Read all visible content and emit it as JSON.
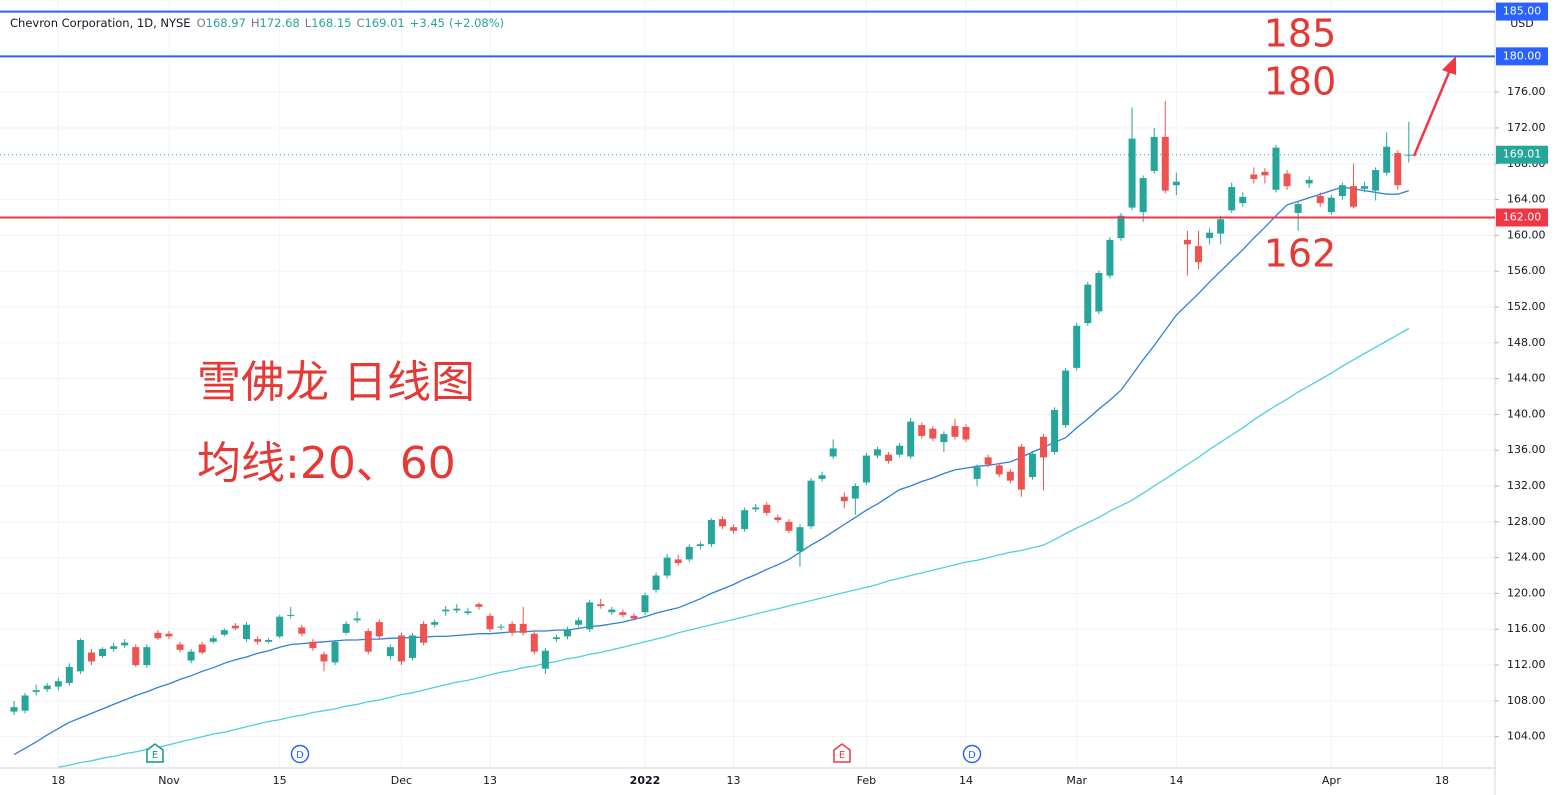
{
  "chart_data": {
    "type": "candlestick",
    "header": {
      "name": "Chevron Corporation, 1D, NYSE",
      "o": "O",
      "h": "H",
      "l": "L",
      "c": "C",
      "change": "+3.45",
      "change_pct": "(+2.08%)"
    },
    "currency": "USD",
    "categories": [
      null,
      null,
      null,
      null,
      "18",
      null,
      null,
      null,
      null,
      null,
      null,
      null,
      null,
      null,
      "Nov",
      null,
      null,
      null,
      null,
      null,
      null,
      null,
      null,
      null,
      "15",
      null,
      null,
      null,
      null,
      null,
      null,
      null,
      null,
      null,
      null,
      "Dec",
      null,
      null,
      null,
      null,
      null,
      null,
      null,
      "13",
      null,
      null,
      null,
      null,
      null,
      null,
      null,
      null,
      null,
      null,
      null,
      null,
      null,
      "2022",
      null,
      null,
      null,
      null,
      null,
      null,
      null,
      "13",
      null,
      null,
      null,
      null,
      null,
      null,
      null,
      null,
      null,
      null,
      null,
      "Feb",
      null,
      null,
      null,
      null,
      null,
      null,
      null,
      null,
      "14",
      null,
      null,
      null,
      null,
      null,
      null,
      null,
      null,
      null,
      "Mar",
      null,
      null,
      null,
      null,
      null,
      null,
      null,
      null,
      "14",
      null,
      null,
      null,
      null,
      null,
      null,
      null,
      null,
      null,
      null,
      null,
      null,
      null,
      "Apr",
      null,
      null,
      null,
      null,
      null,
      null,
      null,
      null,
      null,
      "18"
    ],
    "open": [
      106.8,
      106.9,
      109.0,
      109.3,
      109.6,
      110.0,
      111.3,
      113.4,
      113.0,
      113.8,
      114.2,
      114.0,
      112.0,
      115.6,
      115.5,
      114.3,
      112.5,
      114.3,
      114.6,
      115.4,
      116.4,
      114.9,
      114.9,
      114.6,
      115.2,
      117.5,
      116.2,
      114.6,
      113.2,
      112.3,
      115.6,
      117.0,
      115.8,
      116.8,
      113.0,
      115.3,
      112.8,
      116.6,
      116.5,
      118.0,
      118.1,
      117.8,
      118.8,
      117.5,
      116.2,
      116.6,
      116.6,
      115.5,
      111.6,
      114.9,
      115.2,
      116.5,
      116.0,
      118.8,
      117.9,
      117.9,
      117.5,
      117.9,
      120.4,
      122.0,
      123.8,
      123.8,
      125.3,
      125.5,
      128.3,
      127.4,
      127.2,
      129.4,
      129.9,
      128.5,
      128.0,
      124.7,
      127.5,
      132.8,
      135.3,
      130.8,
      130.6,
      132.4,
      135.4,
      135.5,
      135.5,
      135.3,
      138.8,
      138.4,
      136.9,
      138.7,
      138.6,
      132.8,
      135.2,
      134.3,
      133.6,
      136.4,
      133.0,
      137.5,
      135.8,
      138.8,
      145.2,
      150.2,
      151.5,
      155.5,
      159.7,
      163.1,
      162.6,
      167.2,
      171.0,
      165.6,
      159.5,
      158.8,
      159.7,
      160.2,
      162.8,
      163.6,
      166.8,
      167.1,
      165.1,
      166.9,
      162.5,
      165.8,
      164.4,
      162.6,
      164.4,
      165.5,
      165.2,
      165.0,
      167.0,
      169.2,
      168.97,
      null,
      null,
      null
    ],
    "high": [
      108.0,
      108.9,
      109.8,
      110.0,
      110.6,
      112.2,
      115.0,
      113.8,
      114.0,
      114.5,
      114.9,
      114.3,
      114.3,
      115.9,
      115.8,
      114.6,
      113.8,
      114.6,
      115.3,
      116.1,
      116.7,
      116.8,
      115.2,
      115.0,
      117.6,
      118.5,
      116.5,
      114.9,
      113.5,
      114.8,
      116.9,
      118.0,
      116.1,
      117.1,
      114.3,
      115.6,
      115.6,
      116.9,
      117.1,
      118.6,
      118.8,
      118.4,
      119.0,
      117.8,
      116.6,
      116.9,
      118.5,
      115.8,
      113.9,
      115.4,
      116.3,
      117.3,
      119.3,
      119.4,
      118.5,
      118.2,
      117.8,
      120.1,
      122.3,
      124.4,
      124.3,
      125.5,
      125.8,
      128.4,
      128.6,
      127.7,
      129.6,
      130.0,
      130.2,
      128.8,
      128.3,
      127.7,
      132.9,
      133.6,
      137.2,
      131.3,
      132.3,
      135.7,
      136.4,
      135.8,
      136.8,
      139.6,
      139.1,
      138.7,
      138.1,
      139.5,
      138.9,
      134.4,
      135.5,
      134.6,
      133.9,
      136.7,
      135.9,
      137.8,
      140.8,
      145.2,
      150.2,
      154.8,
      156.1,
      159.8,
      162.5,
      174.3,
      166.7,
      172.0,
      175.0,
      167.0,
      160.5,
      160.5,
      160.8,
      162.2,
      165.9,
      164.8,
      167.6,
      167.5,
      170.1,
      167.3,
      163.8,
      166.6,
      164.8,
      164.5,
      165.9,
      168.0,
      166.0,
      167.6,
      171.5,
      169.5,
      172.68,
      null,
      null,
      null
    ],
    "low": [
      106.4,
      106.6,
      108.6,
      109.0,
      109.2,
      109.7,
      111.0,
      112.0,
      112.8,
      113.5,
      113.9,
      111.8,
      111.7,
      114.8,
      114.9,
      113.4,
      112.2,
      113.2,
      114.4,
      115.2,
      115.9,
      114.6,
      114.3,
      114.4,
      115.0,
      117.2,
      115.2,
      113.6,
      111.3,
      112.0,
      115.4,
      116.7,
      113.2,
      114.9,
      112.6,
      112.0,
      112.5,
      114.2,
      116.2,
      117.5,
      117.8,
      117.6,
      118.2,
      115.7,
      115.9,
      115.3,
      115.3,
      113.2,
      111.0,
      114.6,
      114.9,
      116.2,
      115.7,
      118.3,
      117.6,
      117.3,
      117.0,
      117.6,
      120.1,
      121.7,
      123.1,
      123.5,
      124.9,
      125.2,
      127.2,
      126.7,
      126.9,
      129.1,
      128.7,
      127.9,
      126.7,
      123.0,
      127.2,
      132.5,
      135.0,
      129.5,
      128.8,
      132.1,
      135.1,
      134.5,
      135.2,
      135.0,
      137.3,
      137.0,
      135.8,
      137.2,
      136.9,
      132.0,
      134.1,
      133.0,
      132.3,
      130.8,
      132.7,
      131.5,
      135.5,
      138.5,
      144.9,
      149.9,
      151.2,
      155.2,
      159.4,
      162.8,
      161.5,
      166.9,
      164.7,
      164.5,
      155.5,
      156.2,
      159.0,
      159.0,
      162.5,
      163.2,
      165.8,
      165.8,
      164.8,
      165.1,
      160.5,
      165.3,
      163.2,
      162.3,
      164.0,
      163.0,
      164.8,
      163.9,
      166.7,
      165.1,
      168.15,
      null,
      null,
      null
    ],
    "close": [
      107.3,
      108.6,
      109.2,
      109.7,
      110.2,
      111.8,
      114.8,
      112.4,
      113.8,
      114.1,
      114.5,
      112.0,
      114.0,
      115.0,
      115.2,
      113.7,
      113.5,
      113.4,
      115.0,
      115.9,
      116.1,
      116.5,
      114.6,
      114.8,
      117.4,
      117.6,
      115.5,
      113.9,
      112.4,
      114.6,
      116.6,
      117.2,
      113.5,
      115.2,
      114.0,
      112.4,
      115.3,
      114.5,
      116.8,
      118.2,
      118.3,
      118.0,
      118.5,
      116.0,
      116.3,
      115.6,
      115.6,
      113.5,
      113.6,
      115.1,
      116.0,
      117.0,
      119.0,
      118.6,
      118.2,
      117.6,
      117.2,
      119.8,
      122.0,
      124.0,
      123.4,
      125.2,
      125.5,
      128.2,
      127.5,
      127.0,
      129.3,
      129.6,
      129.0,
      128.2,
      127.0,
      127.4,
      132.6,
      133.2,
      136.2,
      130.3,
      132.0,
      135.4,
      136.1,
      134.8,
      136.5,
      139.2,
      137.6,
      137.3,
      137.8,
      137.5,
      137.2,
      134.1,
      134.4,
      133.3,
      132.6,
      131.6,
      135.6,
      135.2,
      140.5,
      144.9,
      149.9,
      154.5,
      155.8,
      159.5,
      162.2,
      170.8,
      166.4,
      171.0,
      165.0,
      166.0,
      159.0,
      157.0,
      160.3,
      161.8,
      165.4,
      164.3,
      166.3,
      166.7,
      169.8,
      165.5,
      163.5,
      166.2,
      163.6,
      164.2,
      165.6,
      163.2,
      165.5,
      167.3,
      169.9,
      165.6,
      169.01,
      null,
      null,
      null
    ],
    "up_color": "#26a69a",
    "down_color": "#ef5350",
    "overlays": [
      {
        "color": "#2f80d8",
        "values": [
          102.0,
          102.7,
          103.4,
          104.2,
          104.9,
          105.6,
          106.1,
          106.6,
          107.1,
          107.6,
          108.1,
          108.6,
          109.0,
          109.5,
          109.9,
          110.4,
          110.8,
          111.3,
          111.7,
          112.2,
          112.6,
          112.9,
          113.3,
          113.6,
          114.0,
          114.3,
          114.4,
          114.5,
          114.6,
          114.7,
          114.8,
          114.8,
          114.9,
          114.9,
          115.0,
          115.0,
          115.1,
          115.1,
          115.2,
          115.2,
          115.3,
          115.4,
          115.5,
          115.5,
          115.6,
          115.7,
          115.7,
          115.8,
          115.8,
          115.9,
          115.9,
          116.1,
          116.3,
          116.4,
          116.6,
          116.8,
          117.1,
          117.4,
          117.8,
          118.1,
          118.4,
          118.9,
          119.4,
          120.0,
          120.5,
          121.0,
          121.6,
          122.1,
          122.7,
          123.2,
          123.8,
          124.6,
          125.4,
          126.1,
          126.9,
          127.7,
          128.5,
          129.3,
          130.0,
          130.8,
          131.6,
          132.0,
          132.5,
          132.9,
          133.4,
          133.8,
          134.0,
          134.2,
          134.3,
          134.5,
          134.7,
          135.2,
          135.8,
          136.3,
          136.9,
          137.4,
          138.5,
          139.5,
          140.6,
          141.6,
          142.7,
          144.4,
          146.1,
          147.7,
          149.4,
          151.1,
          152.3,
          153.5,
          154.8,
          156.0,
          157.2,
          158.4,
          159.7,
          160.9,
          162.2,
          163.4,
          163.8,
          164.2,
          164.6,
          165.0,
          165.4,
          165.2,
          165.0,
          164.8,
          164.6,
          164.6,
          165.0,
          null,
          null,
          null
        ]
      },
      {
        "color": "#4dd0e1",
        "values": [
          null,
          null,
          null,
          null,
          100.6,
          100.8,
          101.1,
          101.3,
          101.6,
          101.8,
          102.1,
          102.3,
          102.6,
          102.8,
          103.1,
          103.4,
          103.7,
          104.0,
          104.3,
          104.5,
          104.8,
          105.1,
          105.4,
          105.7,
          105.9,
          106.2,
          106.4,
          106.7,
          106.9,
          107.1,
          107.4,
          107.6,
          107.9,
          108.1,
          108.4,
          108.7,
          108.9,
          109.2,
          109.5,
          109.8,
          110.1,
          110.3,
          110.6,
          110.9,
          111.2,
          111.4,
          111.7,
          111.9,
          112.2,
          112.4,
          112.7,
          112.9,
          113.2,
          113.4,
          113.7,
          114.0,
          114.3,
          114.6,
          114.9,
          115.2,
          115.6,
          115.9,
          116.2,
          116.5,
          116.8,
          117.1,
          117.4,
          117.7,
          118.0,
          118.3,
          118.6,
          118.9,
          119.2,
          119.5,
          119.8,
          120.1,
          120.4,
          120.7,
          121.0,
          121.4,
          121.7,
          122.0,
          122.3,
          122.6,
          122.9,
          123.2,
          123.5,
          123.7,
          124.0,
          124.3,
          124.6,
          124.8,
          125.1,
          125.4,
          126.0,
          126.7,
          127.3,
          127.9,
          128.5,
          129.2,
          129.8,
          130.4,
          131.2,
          132.0,
          132.8,
          133.6,
          134.4,
          135.2,
          136.1,
          136.9,
          137.7,
          138.5,
          139.4,
          140.2,
          141.0,
          141.7,
          142.5,
          143.2,
          143.9,
          144.6,
          145.4,
          146.1,
          146.8,
          147.5,
          148.2,
          148.9,
          149.6,
          null,
          null,
          null
        ]
      }
    ],
    "levels": [
      {
        "value": 185,
        "label": "185.00",
        "color": "#2962ff"
      },
      {
        "value": 180,
        "label": "180.00",
        "color": "#2962ff"
      },
      {
        "value": 162,
        "label": "162.00",
        "color": "#f23645"
      }
    ],
    "ylim": [
      100.5,
      185.4
    ],
    "yticks": [
      {
        "value": 104,
        "label": "104.00"
      },
      {
        "value": 108,
        "label": "108.00"
      },
      {
        "value": 112,
        "label": "112.00"
      },
      {
        "value": 116,
        "label": "116.00"
      },
      {
        "value": 120,
        "label": "120.00"
      },
      {
        "value": 124,
        "label": "124.00"
      },
      {
        "value": 128,
        "label": "128.00"
      },
      {
        "value": 132,
        "label": "132.00"
      },
      {
        "value": 136,
        "label": "136.00"
      },
      {
        "value": 140,
        "label": "140.00"
      },
      {
        "value": 144,
        "label": "144.00"
      },
      {
        "value": 148,
        "label": "148.00"
      },
      {
        "value": 152,
        "label": "152.00"
      },
      {
        "value": 156,
        "label": "156.00"
      },
      {
        "value": 160,
        "label": "160.00"
      },
      {
        "value": 164,
        "label": "164.00"
      },
      {
        "value": 168,
        "label": "168.00"
      },
      {
        "value": 172,
        "label": "172.00"
      },
      {
        "value": 176,
        "label": "176.00"
      }
    ],
    "grid": true,
    "annotations": [
      "185",
      "180",
      "162",
      "雪佛龙 日线图",
      "均线:20、60"
    ],
    "events": [
      {
        "label": "E"
      },
      {
        "label": "D"
      },
      {
        "label": "E"
      },
      {
        "label": "D"
      }
    ]
  }
}
